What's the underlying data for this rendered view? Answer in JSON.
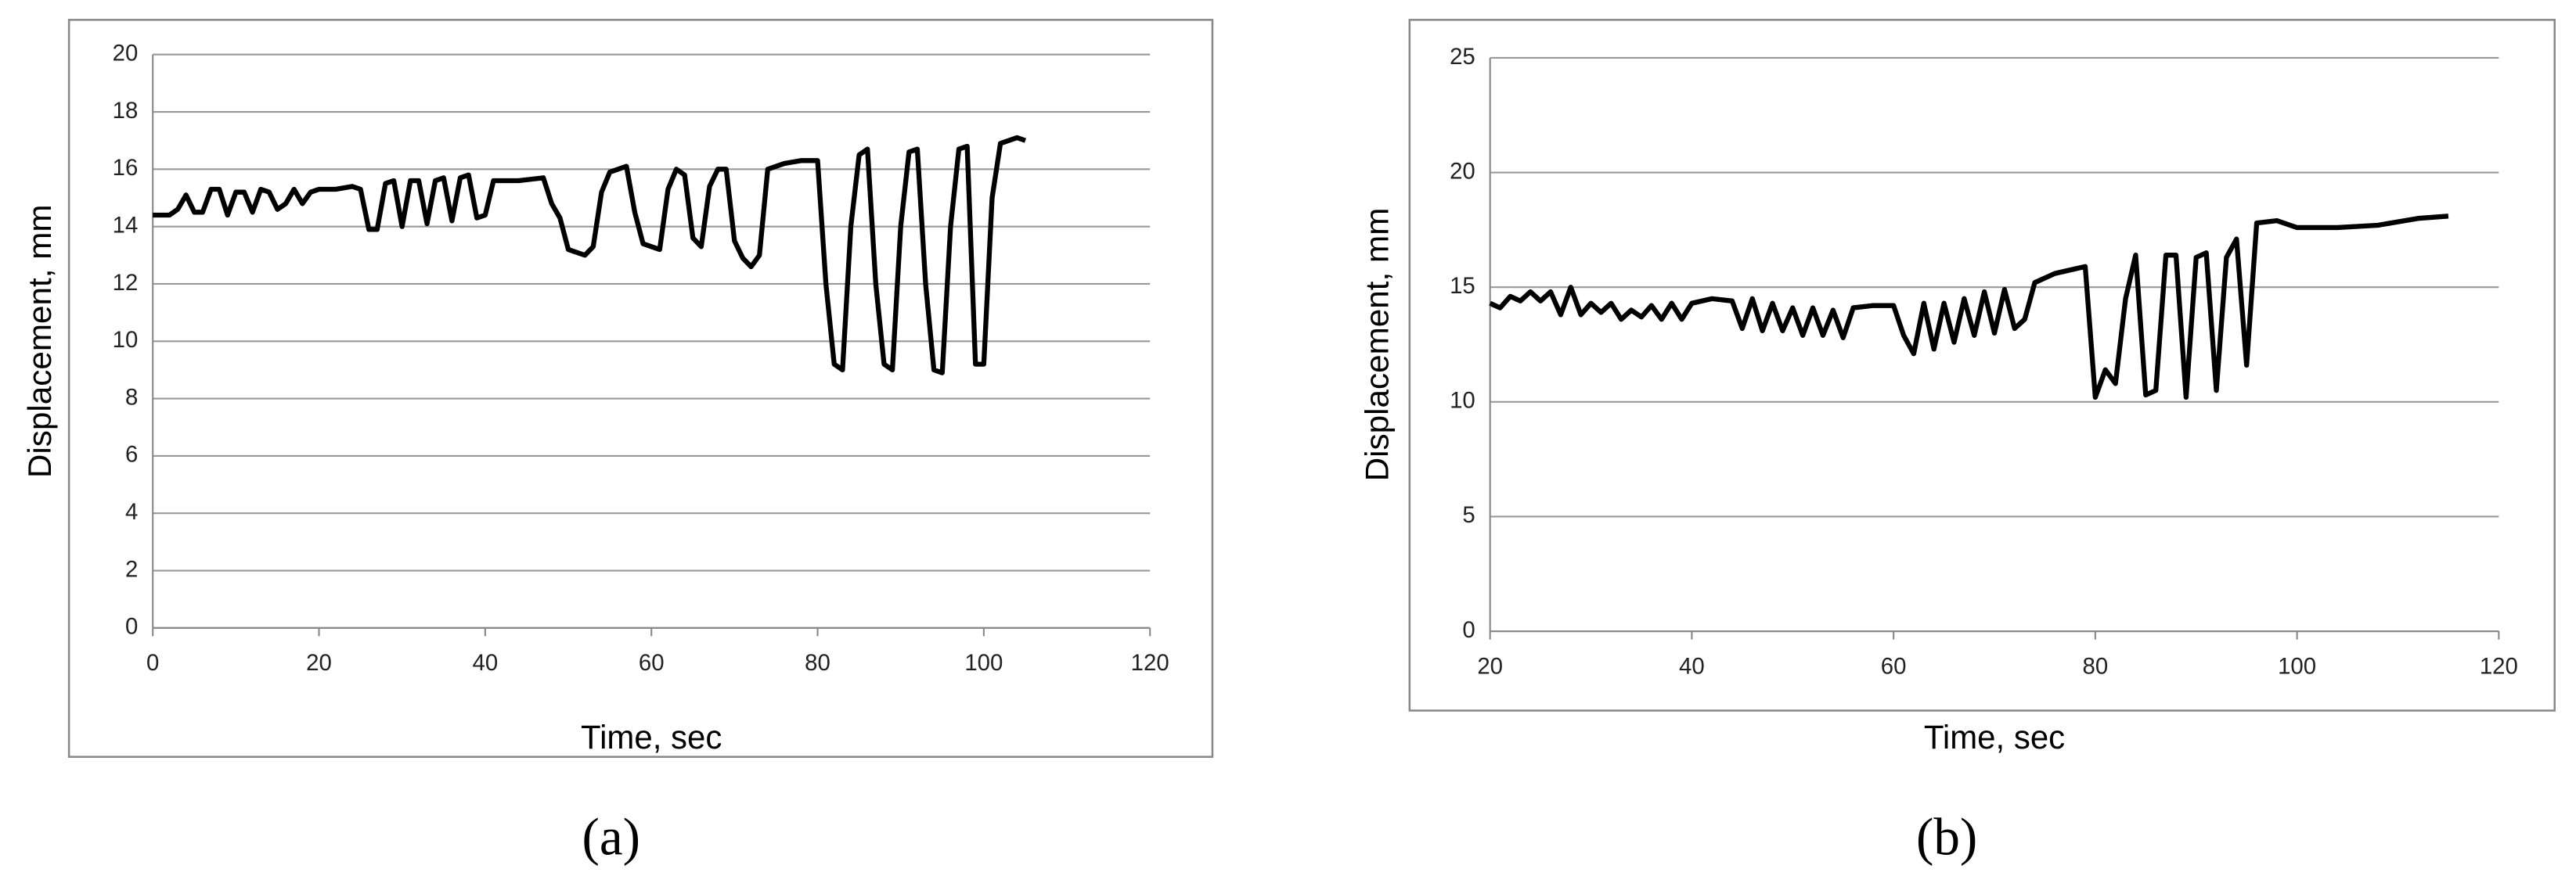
{
  "chart_data": [
    {
      "type": "line",
      "caption": "(a)",
      "x_label": "Time, sec",
      "y_label": "Displacement, mm",
      "xlim": [
        0,
        120
      ],
      "xticks": [
        0,
        20,
        40,
        60,
        80,
        100,
        120
      ],
      "ylim": [
        0,
        20
      ],
      "yticks": [
        0,
        2,
        4,
        6,
        8,
        10,
        12,
        14,
        16,
        18,
        20
      ],
      "grid": true,
      "x": [
        0,
        2,
        3,
        4,
        5,
        6,
        7,
        8,
        9,
        10,
        11,
        12,
        13,
        14,
        15,
        16,
        17,
        18,
        19,
        20,
        22,
        24,
        25,
        26,
        27,
        28,
        29,
        30,
        31,
        32,
        33,
        34,
        35,
        36,
        37,
        38,
        39,
        40,
        41,
        44,
        47,
        48,
        49,
        50,
        52,
        53,
        54,
        55,
        57,
        58,
        59,
        61,
        62,
        63,
        64,
        65,
        66,
        67,
        68,
        69,
        70,
        71,
        72,
        73,
        74,
        76,
        78,
        80,
        81,
        82,
        83,
        84,
        85,
        86,
        87,
        88,
        89,
        90,
        91,
        92,
        93,
        94,
        95,
        96,
        97,
        98,
        99,
        100,
        101,
        102,
        104,
        105
      ],
      "series": [
        {
          "color": "#000000",
          "values": [
            14.4,
            14.4,
            14.6,
            15.1,
            14.5,
            14.5,
            15.3,
            15.3,
            14.4,
            15.2,
            15.2,
            14.5,
            15.3,
            15.2,
            14.6,
            14.8,
            15.3,
            14.8,
            15.2,
            15.3,
            15.3,
            15.4,
            15.3,
            13.9,
            13.9,
            15.5,
            15.6,
            14.0,
            15.6,
            15.6,
            14.1,
            15.6,
            15.7,
            14.2,
            15.7,
            15.8,
            14.3,
            14.4,
            15.6,
            15.6,
            15.7,
            14.8,
            14.3,
            13.2,
            13.0,
            13.3,
            15.2,
            15.9,
            16.1,
            14.5,
            13.4,
            13.2,
            15.3,
            16.0,
            15.8,
            13.6,
            13.3,
            15.4,
            16.0,
            16.0,
            13.5,
            12.9,
            12.6,
            13.0,
            16.0,
            16.2,
            16.3,
            16.3,
            12,
            9.2,
            9.0,
            14,
            16.5,
            16.7,
            12,
            9.2,
            9.0,
            14,
            16.6,
            16.7,
            12,
            9.0,
            8.9,
            14,
            16.7,
            16.8,
            9.2,
            9.2,
            15,
            16.9,
            17.1,
            17.0
          ]
        }
      ]
    },
    {
      "type": "line",
      "caption": "(b)",
      "x_label": "Time, sec",
      "y_label": "Displacement, mm",
      "xlim": [
        20,
        120
      ],
      "xticks": [
        20,
        40,
        60,
        80,
        100,
        120
      ],
      "ylim": [
        0,
        25
      ],
      "yticks": [
        0,
        5,
        10,
        15,
        20,
        25
      ],
      "grid": true,
      "x": [
        20,
        21,
        22,
        23,
        24,
        25,
        26,
        27,
        28,
        29,
        30,
        31,
        32,
        33,
        34,
        35,
        36,
        37,
        38,
        39,
        40,
        42,
        44,
        45,
        46,
        47,
        48,
        49,
        50,
        51,
        52,
        53,
        54,
        55,
        56,
        58,
        60,
        61,
        62,
        63,
        64,
        65,
        66,
        67,
        68,
        69,
        70,
        71,
        72,
        73,
        74,
        76,
        78,
        79,
        80,
        81,
        82,
        83,
        84,
        85,
        86,
        87,
        88,
        89,
        90,
        91,
        92,
        93,
        94,
        95,
        96,
        98,
        100,
        104,
        108,
        112,
        115
      ],
      "series": [
        {
          "color": "#000000",
          "values": [
            14.3,
            14.1,
            14.6,
            14.4,
            14.8,
            14.4,
            14.8,
            13.8,
            15.0,
            13.8,
            14.3,
            13.9,
            14.3,
            13.6,
            14.0,
            13.7,
            14.2,
            13.6,
            14.3,
            13.6,
            14.3,
            14.5,
            14.4,
            13.2,
            14.5,
            13.1,
            14.3,
            13.1,
            14.1,
            12.9,
            14.1,
            12.9,
            14.0,
            12.8,
            14.1,
            14.2,
            14.2,
            12.9,
            12.1,
            14.3,
            12.3,
            14.3,
            12.6,
            14.5,
            12.9,
            14.8,
            13.0,
            14.9,
            13.2,
            13.6,
            15.2,
            15.6,
            15.8,
            15.9,
            10.2,
            11.4,
            10.8,
            14.5,
            16.4,
            10.3,
            10.5,
            16.4,
            16.4,
            10.2,
            16.3,
            16.5,
            10.5,
            16.3,
            17.1,
            11.6,
            17.8,
            17.9,
            17.6,
            17.6,
            17.7,
            18.0,
            18.1
          ]
        }
      ]
    }
  ]
}
